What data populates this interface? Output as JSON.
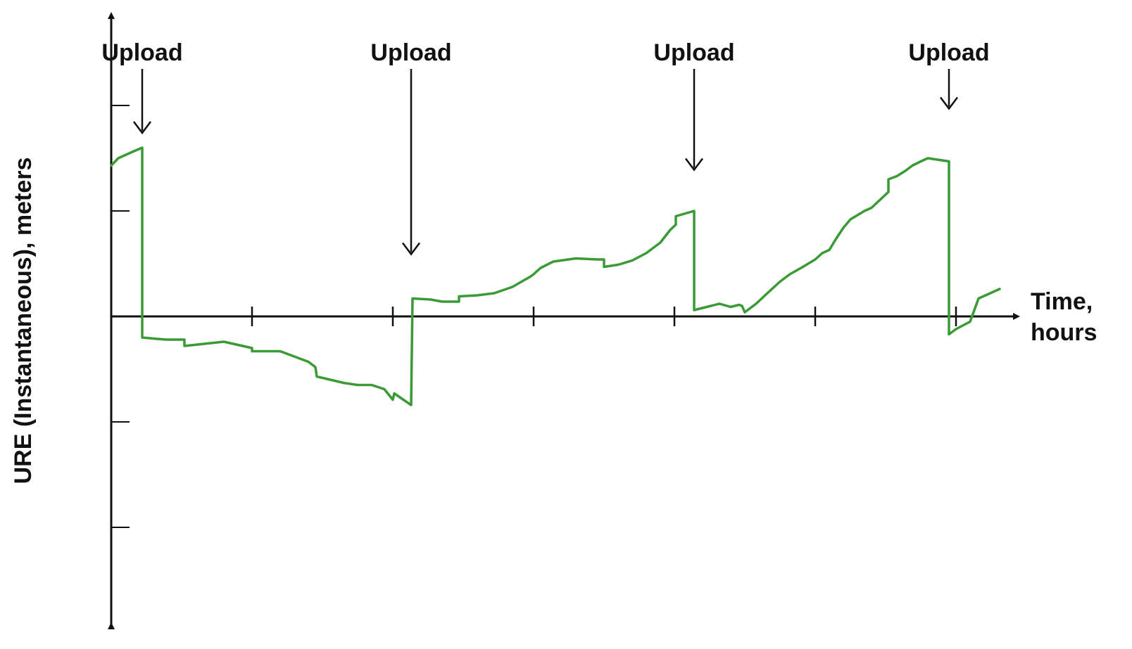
{
  "chart_data": {
    "type": "line",
    "title": "",
    "xlabel": [
      "Time,",
      "hours"
    ],
    "ylabel": "URE (Instantaneous), meters",
    "x_ticks": [
      0,
      1,
      2,
      3,
      4,
      5,
      6
    ],
    "y_ticks": [
      -2,
      -1,
      0,
      1,
      2
    ],
    "xlim": [
      0,
      6.3
    ],
    "ylim": [
      -3,
      3
    ],
    "grid": false,
    "line_color": "#3a9a35",
    "series": [
      {
        "name": "",
        "points": [
          [
            0.0,
            1.43
          ],
          [
            0.05,
            1.5
          ],
          [
            0.15,
            1.56
          ],
          [
            0.22,
            1.6
          ],
          [
            0.22,
            -0.2
          ],
          [
            0.3,
            -0.21
          ],
          [
            0.39,
            -0.22
          ],
          [
            0.52,
            -0.22
          ],
          [
            0.52,
            -0.28
          ],
          [
            0.8,
            -0.24
          ],
          [
            1.0,
            -0.3
          ],
          [
            1.0,
            -0.33
          ],
          [
            1.2,
            -0.33
          ],
          [
            1.4,
            -0.43
          ],
          [
            1.45,
            -0.48
          ],
          [
            1.46,
            -0.57
          ],
          [
            1.65,
            -0.63
          ],
          [
            1.75,
            -0.65
          ],
          [
            1.85,
            -0.65
          ],
          [
            1.94,
            -0.69
          ],
          [
            2.0,
            -0.79
          ],
          [
            2.01,
            -0.73
          ],
          [
            2.13,
            -0.84
          ],
          [
            2.14,
            0.17
          ],
          [
            2.27,
            0.16
          ],
          [
            2.35,
            0.14
          ],
          [
            2.47,
            0.14
          ],
          [
            2.47,
            0.19
          ],
          [
            2.6,
            0.2
          ],
          [
            2.72,
            0.22
          ],
          [
            2.85,
            0.28
          ],
          [
            2.98,
            0.38
          ],
          [
            3.0,
            0.4
          ],
          [
            3.05,
            0.46
          ],
          [
            3.14,
            0.52
          ],
          [
            3.3,
            0.55
          ],
          [
            3.45,
            0.54
          ],
          [
            3.5,
            0.54
          ],
          [
            3.5,
            0.47
          ],
          [
            3.6,
            0.49
          ],
          [
            3.7,
            0.53
          ],
          [
            3.8,
            0.6
          ],
          [
            3.9,
            0.7
          ],
          [
            3.97,
            0.82
          ],
          [
            4.01,
            0.87
          ],
          [
            4.01,
            0.95
          ],
          [
            4.14,
            1.0
          ],
          [
            4.14,
            0.06
          ],
          [
            4.23,
            0.09
          ],
          [
            4.32,
            0.12
          ],
          [
            4.4,
            0.09
          ],
          [
            4.46,
            0.11
          ],
          [
            4.48,
            0.1
          ],
          [
            4.5,
            0.04
          ],
          [
            4.58,
            0.12
          ],
          [
            4.66,
            0.22
          ],
          [
            4.75,
            0.33
          ],
          [
            4.82,
            0.4
          ],
          [
            4.9,
            0.46
          ],
          [
            5.0,
            0.54
          ],
          [
            5.05,
            0.6
          ],
          [
            5.1,
            0.63
          ],
          [
            5.15,
            0.74
          ],
          [
            5.2,
            0.84
          ],
          [
            5.25,
            0.92
          ],
          [
            5.35,
            1.0
          ],
          [
            5.4,
            1.03
          ],
          [
            5.48,
            1.13
          ],
          [
            5.52,
            1.18
          ],
          [
            5.52,
            1.3
          ],
          [
            5.58,
            1.33
          ],
          [
            5.64,
            1.38
          ],
          [
            5.69,
            1.43
          ],
          [
            5.75,
            1.47
          ],
          [
            5.8,
            1.5
          ],
          [
            5.9,
            1.48
          ],
          [
            5.95,
            1.47
          ],
          [
            5.95,
            -0.17
          ],
          [
            6.0,
            -0.12
          ],
          [
            6.1,
            -0.05
          ],
          [
            6.16,
            0.17
          ],
          [
            6.31,
            0.26
          ]
        ]
      }
    ],
    "annotations": [
      {
        "text": "Upload",
        "x": 0.22,
        "y": 1.6
      },
      {
        "text": "Upload",
        "x": 2.13,
        "y": 0.45
      },
      {
        "text": "Upload",
        "x": 4.14,
        "y": 1.25
      },
      {
        "text": "Upload",
        "x": 5.95,
        "y": 1.83
      }
    ]
  }
}
